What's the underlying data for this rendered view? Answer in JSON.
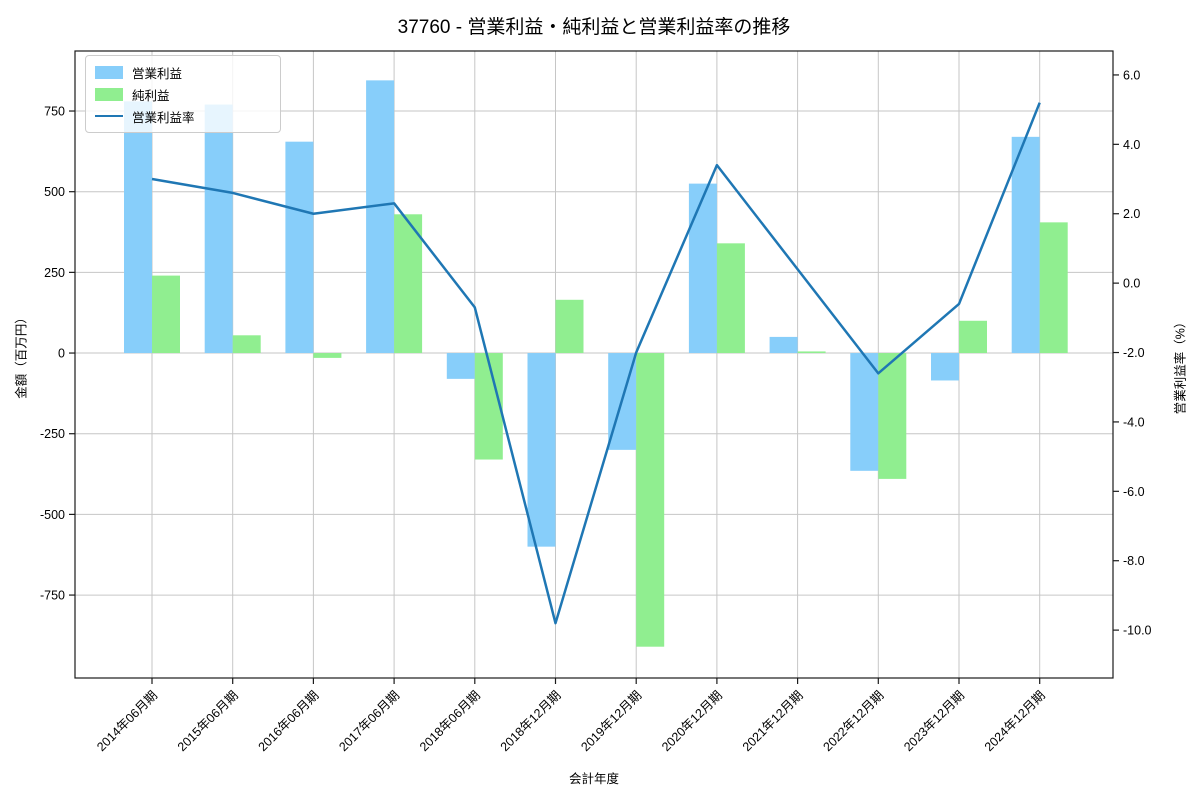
{
  "chart_data": {
    "type": "bar+line",
    "title": "37760 - 営業利益・純利益と営業利益率の推移",
    "xlabel": "会計年度",
    "ylabel_left": "金額（百万円）",
    "ylabel_right": "営業利益率（%）",
    "legend_position": "upper left",
    "grid": true,
    "categories": [
      "2014年06月期",
      "2015年06月期",
      "2016年06月期",
      "2017年06月期",
      "2018年06月期",
      "2018年12月期",
      "2019年12月期",
      "2020年12月期",
      "2021年12月期",
      "2022年12月期",
      "2023年12月期",
      "2024年12月期"
    ],
    "series": [
      {
        "name": "営業利益",
        "type": "bar",
        "axis": "left",
        "color": "#87CEFA",
        "values": [
          780,
          770,
          655,
          845,
          -80,
          -600,
          -300,
          525,
          50,
          -365,
          -85,
          670
        ]
      },
      {
        "name": "純利益",
        "type": "bar",
        "axis": "left",
        "color": "#90EE90",
        "values": [
          240,
          55,
          -15,
          430,
          -330,
          165,
          -910,
          340,
          5,
          -390,
          100,
          405
        ]
      },
      {
        "name": "営業利益率",
        "type": "line",
        "axis": "right",
        "color": "#1F77B4",
        "values": [
          3.0,
          2.6,
          2.0,
          2.3,
          -0.7,
          -9.8,
          -2.0,
          3.4,
          0.4,
          -2.6,
          -0.6,
          5.2
        ]
      }
    ],
    "left_ticks": [
      -750,
      -500,
      -250,
      0,
      250,
      500,
      750
    ],
    "right_ticks": [
      -10,
      -8,
      -6,
      -4,
      -2,
      0,
      2,
      4,
      6
    ],
    "left_ylim": [
      -1007,
      936
    ],
    "right_ylim": [
      -11.38,
      6.69
    ],
    "grid_color": "#c6c6c6",
    "spine_color": "#1a1a1a"
  }
}
